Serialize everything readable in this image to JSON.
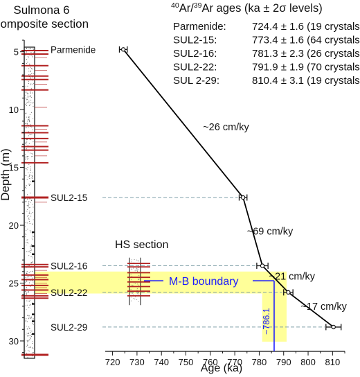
{
  "chart_data": {
    "type": "scatter",
    "column_title_line1": "Sulmona 6",
    "column_title_line2": "composite section",
    "hs_label": "HS section",
    "ages_title_ar40_sup": "40",
    "ages_title_mid": "Ar/",
    "ages_title_ar39_sup": "39",
    "ages_title_rest": "Ar ages (ka ± 2σ levels)",
    "xlabel": "Age (ka)",
    "ylabel": "Depth (m)",
    "xlim": [
      717,
      815
    ],
    "ylim": [
      31.5,
      4
    ],
    "x_ticks": [
      720,
      730,
      740,
      750,
      760,
      770,
      780,
      790,
      800,
      810
    ],
    "y_ticks": [
      5,
      10,
      15,
      20,
      25,
      30
    ],
    "samples": [
      {
        "name": "Parmenide",
        "age": 724.4,
        "err": 1.6,
        "depth": 4.8,
        "legend_name": "Parmenide:",
        "legend_value": "724.4 ± 1.6 (19 crystals)"
      },
      {
        "name": "SUL2-15",
        "age": 773.4,
        "err": 1.6,
        "depth": 17.6,
        "legend_name": "SUL2-15:",
        "legend_value": "773.4 ± 1.6 (64 crystals)"
      },
      {
        "name": "SUL2-16",
        "age": 781.3,
        "err": 2.3,
        "depth": 23.5,
        "legend_name": "SUL2-16:",
        "legend_value": "781.3 ± 2.3 (26 crystals)"
      },
      {
        "name": "SUL2-22",
        "age": 791.9,
        "err": 1.9,
        "depth": 25.8,
        "legend_name": "SUL2-22:",
        "legend_value": "791.9 ± 1.9 (70 crystals)"
      },
      {
        "name": "SUL2-29",
        "age": 810.4,
        "err": 3.1,
        "depth": 28.8,
        "legend_name": "SUL 2-29:",
        "legend_value": "810.4 ± 3.1 (19 crystals)"
      }
    ],
    "rates": [
      {
        "label": "~26 cm/ky",
        "age": 757,
        "depth": 11.8
      },
      {
        "label": "~69 cm/ky",
        "age": 775,
        "depth": 20.8
      },
      {
        "label": "~21 cm/ky",
        "age": 784,
        "depth": 24.7
      },
      {
        "label": "~17 cm/ky",
        "age": 797,
        "depth": 27.3
      }
    ],
    "mb_boundary": {
      "label": "M-B boundary",
      "age_label": "~786.1",
      "age": 786.1,
      "age_min": 781.2,
      "age_max": 791.2,
      "depth": 24.8,
      "depth_min": 24.0,
      "depth_max": 25.9
    },
    "colors": {
      "line": "#000000",
      "boundary": "#1a1aff",
      "band": "#ffff99",
      "tephra": "#b22222",
      "guide": "#7f9fa8"
    }
  }
}
